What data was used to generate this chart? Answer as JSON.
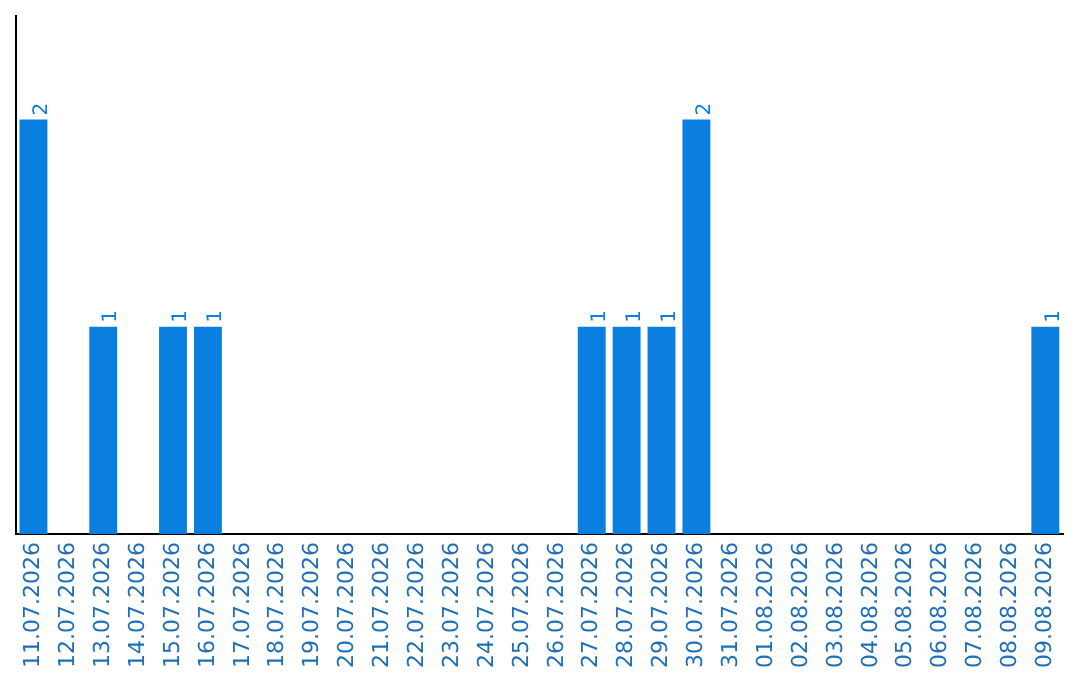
{
  "chart_data": {
    "type": "bar",
    "categories": [
      "11.07.2026",
      "12.07.2026",
      "13.07.2026",
      "14.07.2026",
      "15.07.2026",
      "16.07.2026",
      "17.07.2026",
      "18.07.2026",
      "19.07.2026",
      "20.07.2026",
      "21.07.2026",
      "22.07.2026",
      "23.07.2026",
      "24.07.2026",
      "25.07.2026",
      "26.07.2026",
      "27.07.2026",
      "28.07.2026",
      "29.07.2026",
      "30.07.2026",
      "31.07.2026",
      "01.08.2026",
      "02.08.2026",
      "03.08.2026",
      "04.08.2026",
      "05.08.2026",
      "06.08.2026",
      "07.08.2026",
      "08.08.2026",
      "09.08.2026"
    ],
    "values": [
      2,
      0,
      1,
      0,
      1,
      1,
      0,
      0,
      0,
      0,
      0,
      0,
      0,
      0,
      0,
      0,
      1,
      1,
      1,
      2,
      0,
      0,
      0,
      0,
      0,
      0,
      0,
      0,
      0,
      1
    ],
    "value_labels": [
      "2",
      null,
      "1",
      null,
      "1",
      "1",
      null,
      null,
      null,
      null,
      null,
      null,
      null,
      null,
      null,
      null,
      "1",
      "1",
      "1",
      "2",
      null,
      null,
      null,
      null,
      null,
      null,
      null,
      null,
      null,
      "1"
    ],
    "color": "#0a7fe0",
    "tick_labels": "x",
    "grid": false,
    "legend": false
  }
}
